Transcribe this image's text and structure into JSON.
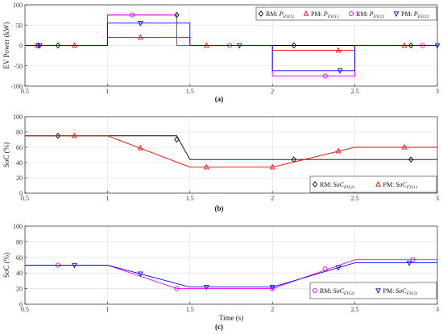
{
  "chart_data": [
    {
      "type": "line",
      "panel_label": "(a)",
      "ylabel": "EV Power (kW)",
      "xlabel": "",
      "xlim": [
        0.5,
        3
      ],
      "ylim": [
        -100,
        100
      ],
      "xticks": [
        0.5,
        1,
        1.5,
        2,
        2.5,
        3
      ],
      "xtick_labels": [
        "0.5",
        "1",
        "1.5",
        "2",
        "2.5",
        "3"
      ],
      "yticks": [
        -100,
        -50,
        0,
        50,
        100
      ],
      "ytick_labels": [
        "-100",
        "-50",
        "0",
        "50",
        "100"
      ],
      "grid": true,
      "legend_position": "top-right",
      "legend_columns": 4,
      "series": [
        {
          "label_prefix": "RM: ",
          "label_var": "P",
          "label_sub": "EV(1)",
          "color": "#000000",
          "marker": "diamond",
          "x": [
            0.5,
            1.0,
            1.0,
            1.42,
            1.42,
            3.0
          ],
          "y": [
            0,
            0,
            75,
            75,
            0,
            0
          ],
          "marker_x": [
            0.58,
            0.7,
            1.42,
            2.13,
            2.84
          ],
          "marker_y": [
            0,
            0,
            75,
            0,
            0
          ]
        },
        {
          "label_prefix": "PM: ",
          "label_var": "P",
          "label_sub": "EV(1)",
          "color": "#ff0000",
          "marker": "triangle-up",
          "x": [
            0.5,
            1.0,
            1.0,
            1.5,
            1.5,
            2.0,
            2.0,
            2.5,
            2.5,
            3.0
          ],
          "y": [
            0,
            0,
            20,
            20,
            0,
            0,
            -12,
            -12,
            0,
            0
          ],
          "marker_x": [
            0.8,
            1.2,
            1.6,
            2.4,
            2.8
          ],
          "marker_y": [
            0,
            20,
            0,
            -12,
            0
          ]
        },
        {
          "label_prefix": "RM: ",
          "label_var": "P",
          "label_sub": "EV(2)",
          "color": "#ff00ff",
          "marker": "circle",
          "x": [
            0.5,
            1.0,
            1.0,
            1.42,
            1.42,
            2.0,
            2.0,
            2.5,
            2.5,
            3.0
          ],
          "y": [
            0,
            0,
            75,
            75,
            0,
            0,
            -75,
            -75,
            0,
            0
          ],
          "marker_x": [
            0.57,
            1.15,
            1.74,
            2.32,
            2.91
          ],
          "marker_y": [
            0,
            75,
            0,
            -75,
            0
          ]
        },
        {
          "label_prefix": "PM: ",
          "label_var": "P",
          "label_sub": "EV(2)",
          "color": "#0000ff",
          "marker": "triangle-down",
          "x": [
            0.5,
            1.0,
            1.0,
            1.5,
            1.5,
            2.0,
            2.0,
            2.5,
            2.5,
            3.0
          ],
          "y": [
            0,
            0,
            55,
            55,
            0,
            0,
            -62,
            -62,
            0,
            0
          ],
          "marker_x": [
            0.59,
            1.2,
            1.8,
            2.41,
            3.0
          ],
          "marker_y": [
            0,
            55,
            0,
            -62,
            0
          ]
        }
      ]
    },
    {
      "type": "line",
      "panel_label": "(b)",
      "ylabel": "SoC (%)",
      "xlabel": "",
      "xlim": [
        0.5,
        3
      ],
      "ylim": [
        0,
        100
      ],
      "xticks": [
        0.5,
        1,
        1.5,
        2,
        2.5,
        3
      ],
      "xtick_labels": [
        "0.5",
        "1",
        "1.5",
        "2",
        "2.5",
        "3"
      ],
      "yticks": [
        0,
        20,
        40,
        60,
        80,
        100
      ],
      "ytick_labels": [
        "0",
        "20",
        "40",
        "60",
        "80",
        "100"
      ],
      "grid": true,
      "legend_position": "bottom-right",
      "legend_columns": 2,
      "series": [
        {
          "label_prefix": "RM: ",
          "label_var": "SoC",
          "label_sub": "EV(1)",
          "color": "#000000",
          "marker": "diamond",
          "x": [
            0.5,
            1.42,
            1.5,
            3.0
          ],
          "y": [
            75,
            75,
            44,
            44
          ],
          "marker_x": [
            0.7,
            1.42,
            2.13,
            2.84
          ],
          "marker_y": [
            75,
            70,
            44,
            44
          ]
        },
        {
          "label_prefix": "PM: ",
          "label_var": "SoC",
          "label_sub": "EV(1)",
          "color": "#ff0000",
          "marker": "triangle-up",
          "x": [
            0.5,
            1.0,
            1.5,
            2.0,
            2.5,
            3.0
          ],
          "y": [
            75,
            75,
            34,
            34,
            60,
            60
          ],
          "marker_x": [
            0.8,
            1.2,
            1.6,
            2.0,
            2.4,
            2.8
          ],
          "marker_y": [
            75,
            59,
            34,
            34,
            55,
            60
          ]
        }
      ]
    },
    {
      "type": "line",
      "panel_label": "(c)",
      "ylabel": "SoC (%)",
      "xlabel": "Time (s)",
      "xlim": [
        0.5,
        3
      ],
      "ylim": [
        0,
        100
      ],
      "xticks": [
        0.5,
        1,
        1.5,
        2,
        2.5,
        3
      ],
      "xtick_labels": [
        "0.5",
        "1",
        "1.5",
        "2",
        "2.5",
        "3"
      ],
      "yticks": [
        0,
        20,
        40,
        60,
        80,
        100
      ],
      "ytick_labels": [
        "0",
        "20",
        "40",
        "60",
        "80",
        "100"
      ],
      "grid": true,
      "legend_position": "bottom-right",
      "legend_columns": 2,
      "series": [
        {
          "label_prefix": "RM: ",
          "label_var": "SoC",
          "label_sub": "EV(2)",
          "color": "#ff00ff",
          "marker": "circle",
          "x": [
            0.5,
            1.0,
            1.42,
            2.0,
            2.5,
            3.0
          ],
          "y": [
            50,
            50,
            20,
            20,
            57,
            57
          ],
          "marker_x": [
            0.7,
            1.42,
            2.0,
            2.32,
            2.85
          ],
          "marker_y": [
            50,
            20,
            20,
            45,
            57
          ]
        },
        {
          "label_prefix": "PM: ",
          "label_var": "SoC",
          "label_sub": "EV(2)",
          "color": "#0000ff",
          "marker": "triangle-down",
          "x": [
            0.5,
            1.0,
            1.5,
            2.0,
            2.5,
            3.0
          ],
          "y": [
            50,
            50,
            22,
            22,
            53,
            53
          ],
          "marker_x": [
            0.8,
            1.2,
            1.6,
            2.0,
            2.4,
            2.83
          ],
          "marker_y": [
            50,
            39,
            22,
            22,
            47,
            53
          ]
        }
      ]
    }
  ]
}
